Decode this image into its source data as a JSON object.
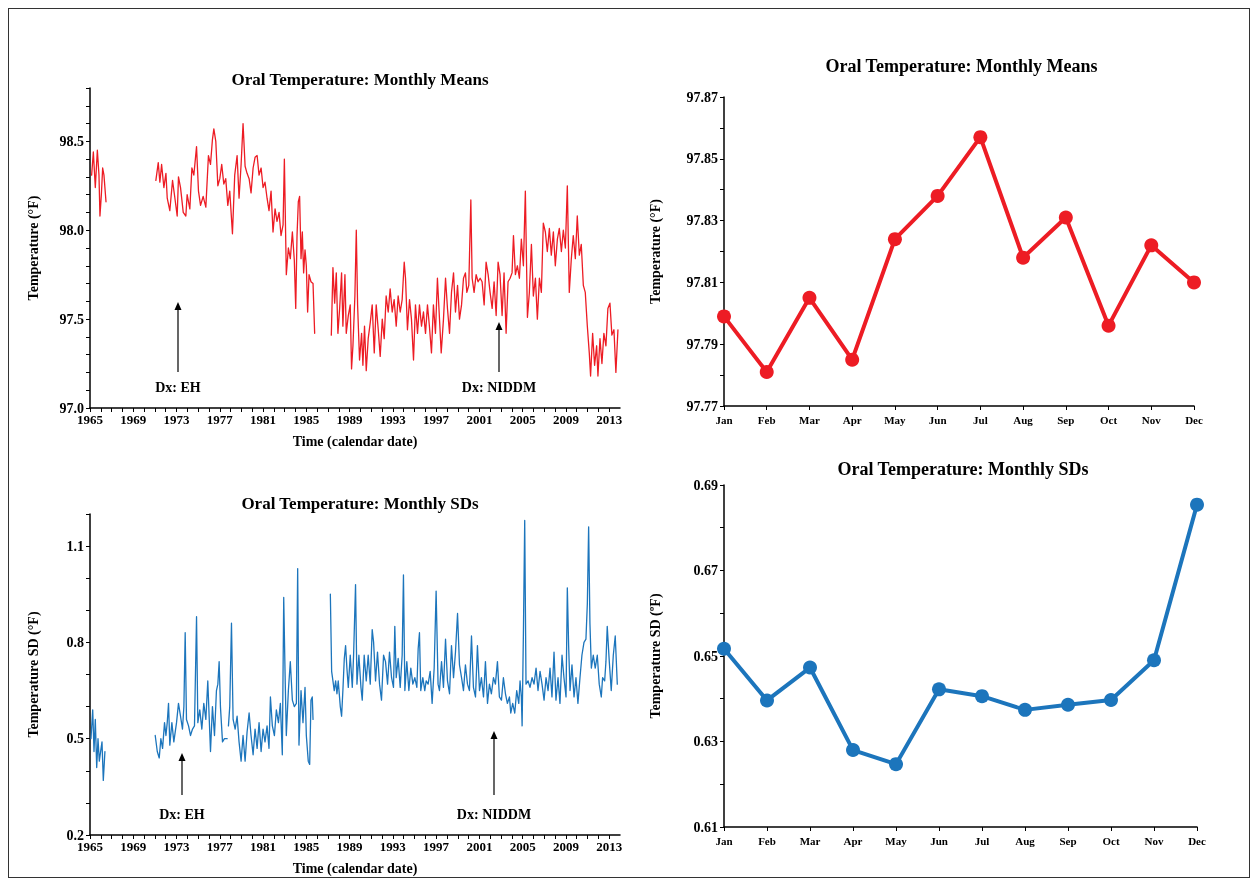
{
  "chart_data": [
    {
      "type": "line",
      "title": "Oral Temperature: Monthly Means",
      "xlabel": "Time (calendar date)",
      "ylabel": "Temperature (°F)",
      "marker": "none",
      "line_style": "solid",
      "xlim": [
        1965,
        2014
      ],
      "xticks": [
        1965,
        {
          "value": 1966,
          "label": null
        },
        {
          "value": 1967,
          "label": null
        },
        {
          "value": 1968,
          "label": null
        },
        1969,
        {
          "value": 1970,
          "label": null
        },
        {
          "value": 1971,
          "label": null
        },
        {
          "value": 1972,
          "label": null
        },
        1973,
        {
          "value": 1974,
          "label": null
        },
        {
          "value": 1975,
          "label": null
        },
        {
          "value": 1976,
          "label": null
        },
        1977,
        {
          "value": 1978,
          "label": null
        },
        {
          "value": 1979,
          "label": null
        },
        {
          "value": 1980,
          "label": null
        },
        1981,
        {
          "value": 1982,
          "label": null
        },
        {
          "value": 1983,
          "label": null
        },
        {
          "value": 1984,
          "label": null
        },
        1985,
        {
          "value": 1986,
          "label": null
        },
        {
          "value": 1987,
          "label": null
        },
        {
          "value": 1988,
          "label": null
        },
        1989,
        {
          "value": 1990,
          "label": null
        },
        {
          "value": 1991,
          "label": null
        },
        {
          "value": 1992,
          "label": null
        },
        1993,
        {
          "value": 1994,
          "label": null
        },
        {
          "value": 1995,
          "label": null
        },
        {
          "value": 1996,
          "label": null
        },
        1997,
        {
          "value": 1998,
          "label": null
        },
        {
          "value": 1999,
          "label": null
        },
        {
          "value": 2000,
          "label": null
        },
        2001,
        {
          "value": 2002,
          "label": null
        },
        {
          "value": 2003,
          "label": null
        },
        {
          "value": 2004,
          "label": null
        },
        2005,
        {
          "value": 2006,
          "label": null
        },
        {
          "value": 2007,
          "label": null
        },
        {
          "value": 2008,
          "label": null
        },
        2009,
        {
          "value": 2010,
          "label": null
        },
        {
          "value": 2011,
          "label": null
        },
        {
          "value": 2012,
          "label": null
        },
        2013
      ],
      "ylim": [
        97,
        98.8
      ],
      "yticks": [
        {
          "value": 97,
          "label": "97.0"
        },
        {
          "value": 97.1,
          "label": null
        },
        {
          "value": 97.2,
          "label": null
        },
        {
          "value": 97.3,
          "label": null
        },
        {
          "value": 97.4,
          "label": null
        },
        97.5,
        {
          "value": 97.6,
          "label": null
        },
        {
          "value": 97.7,
          "label": null
        },
        {
          "value": 97.8,
          "label": null
        },
        {
          "value": 97.9,
          "label": null
        },
        {
          "value": 98,
          "label": "98.0"
        },
        {
          "value": 98.1,
          "label": null
        },
        {
          "value": 98.2,
          "label": null
        },
        {
          "value": 98.3,
          "label": null
        },
        {
          "value": 98.4,
          "label": null
        },
        98.5,
        {
          "value": 98.6,
          "label": null
        },
        {
          "value": 98.7,
          "label": null
        },
        {
          "value": 98.8,
          "label": null
        }
      ],
      "annotations": [
        "Dx: EH",
        "Dx: NIDDM"
      ],
      "x": [
        1965.15,
        1965.31,
        1965.49,
        1965.68,
        1965.83,
        1965.92,
        1966.05,
        1966.17,
        1966.29,
        1966.48,
        1968.5,
        1971.09,
        1971.31,
        1971.46,
        1971.62,
        1971.83,
        1972.02,
        1972.14,
        1972.38,
        1972.63,
        1972.85,
        1973.06,
        1973.18,
        1973.37,
        1973.62,
        1973.86,
        1973.98,
        1974.23,
        1974.42,
        1974.6,
        1974.85,
        1975.03,
        1975.22,
        1975.46,
        1975.71,
        1975.95,
        1976.14,
        1976.32,
        1976.45,
        1976.63,
        1976.82,
        1977.0,
        1977.18,
        1977.37,
        1977.55,
        1977.74,
        1977.92,
        1978.17,
        1978.38,
        1978.6,
        1978.78,
        1978.97,
        1979.15,
        1979.34,
        1979.52,
        1979.71,
        1979.89,
        1980.08,
        1980.26,
        1980.45,
        1980.63,
        1980.82,
        1981.0,
        1981.18,
        1981.37,
        1981.55,
        1981.74,
        1981.92,
        1982.11,
        1982.29,
        1982.48,
        1982.66,
        1982.85,
        1982.97,
        1983.15,
        1983.34,
        1983.52,
        1983.71,
        1983.89,
        1984.02,
        1984.14,
        1984.26,
        1984.38,
        1984.51,
        1984.63,
        1984.75,
        1984.88,
        1985.0,
        1985.12,
        1985.25,
        1985.43,
        1985.62,
        1985.77,
        1986.5,
        1987.31,
        1987.46,
        1987.62,
        1987.77,
        1987.92,
        1988.08,
        1988.26,
        1988.38,
        1988.57,
        1988.69,
        1988.88,
        1989.06,
        1989.18,
        1989.31,
        1989.49,
        1989.62,
        1989.74,
        1989.92,
        1990.11,
        1990.23,
        1990.38,
        1990.54,
        1990.72,
        1990.91,
        1991.09,
        1991.28,
        1991.46,
        1991.65,
        1991.83,
        1992.02,
        1992.2,
        1992.38,
        1992.57,
        1992.75,
        1992.94,
        1993.12,
        1993.31,
        1993.49,
        1993.68,
        1993.86,
        1994.05,
        1994.17,
        1994.35,
        1994.54,
        1994.72,
        1994.91,
        1995.09,
        1995.28,
        1995.46,
        1995.65,
        1995.83,
        1996.02,
        1996.2,
        1996.38,
        1996.57,
        1996.75,
        1996.94,
        1997.12,
        1997.47,
        1997.68,
        1997.87,
        1998.05,
        1998.24,
        1998.42,
        1998.61,
        1998.79,
        1998.98,
        1999.16,
        1999.35,
        1999.53,
        1999.71,
        1999.84,
        2000.02,
        2000.21,
        2000.33,
        2000.51,
        2000.7,
        2000.88,
        2001.07,
        2001.25,
        2001.44,
        2001.62,
        2001.81,
        2001.99,
        2002.18,
        2002.36,
        2002.55,
        2002.73,
        2002.91,
        2003.1,
        2003.28,
        2003.47,
        2003.65,
        2003.84,
        2004.02,
        2004.15,
        2004.33,
        2004.51,
        2004.7,
        2004.88,
        2005.07,
        2005.25,
        2005.44,
        2005.62,
        2005.81,
        2005.99,
        2006.18,
        2006.36,
        2006.55,
        2006.73,
        2006.91,
        2007.1,
        2007.28,
        2007.47,
        2007.65,
        2007.84,
        2008.02,
        2008.21,
        2008.39,
        2008.58,
        2008.76,
        2008.95,
        2009.13,
        2009.31,
        2009.5,
        2009.68,
        2009.87,
        2010.05,
        2010.24,
        2010.42,
        2010.61,
        2010.79,
        2010.98,
        2011.16,
        2011.28,
        2011.47,
        2011.65,
        2011.84,
        2011.96,
        2012.15,
        2012.33,
        2012.51,
        2012.7,
        2012.88,
        2013.07,
        2013.25,
        2013.44,
        2013.62,
        2013.81
      ],
      "series": [
        {
          "color": "#ed1c24",
          "values": [
            98.31,
            98.44,
            98.24,
            98.45,
            98.31,
            98.08,
            98.2,
            98.35,
            98.31,
            98.16,
            null,
            98.28,
            98.38,
            98.27,
            98.37,
            98.24,
            98.32,
            98.18,
            98.11,
            98.28,
            98.18,
            98.08,
            98.3,
            98.24,
            98.1,
            98.08,
            98.2,
            98.12,
            98.35,
            98.31,
            98.47,
            98.22,
            98.14,
            98.19,
            98.13,
            98.42,
            98.37,
            98.51,
            98.57,
            98.5,
            98.25,
            98.29,
            98.37,
            98.26,
            98.29,
            98.14,
            98.22,
            97.98,
            98.31,
            98.42,
            98.18,
            98.37,
            98.6,
            98.36,
            98.32,
            98.29,
            98.21,
            98.35,
            98.41,
            98.42,
            98.31,
            98.35,
            98.24,
            98.27,
            98.18,
            98.11,
            98.22,
            97.99,
            98.12,
            98.05,
            98.1,
            97.97,
            98.03,
            98.4,
            97.75,
            97.9,
            97.84,
            97.99,
            97.83,
            97.56,
            97.97,
            98.16,
            98.19,
            97.84,
            97.99,
            97.76,
            97.89,
            97.8,
            97.54,
            97.75,
            97.71,
            97.7,
            97.42,
            null,
            97.41,
            97.79,
            97.59,
            97.76,
            97.42,
            97.56,
            97.76,
            97.46,
            97.75,
            97.42,
            97.52,
            97.58,
            97.22,
            97.35,
            97.63,
            98.0,
            97.58,
            97.27,
            97.42,
            97.24,
            97.46,
            97.21,
            97.39,
            97.48,
            97.58,
            97.31,
            97.58,
            97.44,
            97.29,
            97.5,
            97.39,
            97.63,
            97.54,
            97.67,
            97.54,
            97.61,
            97.46,
            97.63,
            97.54,
            97.61,
            97.82,
            97.73,
            97.44,
            97.61,
            97.5,
            97.27,
            97.58,
            97.42,
            97.58,
            97.46,
            97.54,
            97.42,
            97.58,
            97.46,
            97.31,
            97.58,
            97.42,
            97.73,
            97.31,
            97.5,
            97.73,
            97.56,
            97.42,
            97.65,
            97.76,
            97.54,
            97.69,
            97.5,
            97.58,
            97.73,
            97.76,
            97.65,
            97.69,
            98.17,
            97.73,
            97.65,
            97.75,
            97.71,
            97.73,
            97.71,
            97.58,
            97.82,
            97.75,
            97.65,
            97.56,
            97.71,
            97.52,
            97.82,
            97.75,
            97.52,
            97.76,
            97.42,
            97.71,
            97.73,
            97.76,
            97.97,
            97.75,
            97.8,
            97.73,
            97.95,
            97.8,
            98.22,
            97.51,
            97.65,
            97.92,
            97.63,
            97.73,
            97.5,
            97.73,
            97.65,
            98.04,
            97.99,
            97.88,
            98.01,
            97.86,
            97.99,
            97.8,
            97.95,
            98.01,
            97.88,
            98.0,
            97.9,
            98.25,
            97.65,
            97.84,
            97.97,
            97.84,
            98.08,
            97.86,
            97.92,
            97.69,
            97.65,
            97.46,
            97.31,
            97.18,
            97.42,
            97.24,
            97.35,
            97.18,
            97.39,
            97.25,
            97.42,
            97.35,
            97.56,
            97.59,
            97.41,
            97.44,
            97.2,
            97.44
          ]
        }
      ]
    },
    {
      "type": "line",
      "title": "Oral Temperature: Monthly Means",
      "ylabel": "Temperature (°F)",
      "marker": "circle",
      "line_style": "solid",
      "categories": [
        "Jan",
        "Feb",
        "Mar",
        "Apr",
        "May",
        "Jun",
        "Jul",
        "Aug",
        "Sep",
        "Oct",
        "Nov",
        "Dec"
      ],
      "ylim": [
        97.77,
        97.87
      ],
      "yticks": [
        97.77,
        {
          "value": 97.78,
          "label": null
        },
        97.79,
        {
          "value": 97.8,
          "label": null
        },
        97.81,
        {
          "value": 97.82,
          "label": null
        },
        97.83,
        {
          "value": 97.84,
          "label": null
        },
        97.85,
        {
          "value": 97.86,
          "label": null
        },
        97.87
      ],
      "series": [
        {
          "color": "#ed1c24",
          "values": [
            97.799,
            97.781,
            97.805,
            97.785,
            97.824,
            97.838,
            97.857,
            97.818,
            97.831,
            97.796,
            97.822,
            97.81
          ]
        }
      ]
    },
    {
      "type": "line",
      "title": "Oral Temperature: Monthly SDs",
      "xlabel": "Time (calendar date)",
      "ylabel": "Temperature SD (°F)",
      "marker": "none",
      "line_style": "solid",
      "xlim": [
        1965,
        2014
      ],
      "xticks": [
        1965,
        {
          "value": 1966,
          "label": null
        },
        {
          "value": 1967,
          "label": null
        },
        {
          "value": 1968,
          "label": null
        },
        1969,
        {
          "value": 1970,
          "label": null
        },
        {
          "value": 1971,
          "label": null
        },
        {
          "value": 1972,
          "label": null
        },
        1973,
        {
          "value": 1974,
          "label": null
        },
        {
          "value": 1975,
          "label": null
        },
        {
          "value": 1976,
          "label": null
        },
        1977,
        {
          "value": 1978,
          "label": null
        },
        {
          "value": 1979,
          "label": null
        },
        {
          "value": 1980,
          "label": null
        },
        1981,
        {
          "value": 1982,
          "label": null
        },
        {
          "value": 1983,
          "label": null
        },
        {
          "value": 1984,
          "label": null
        },
        1985,
        {
          "value": 1986,
          "label": null
        },
        {
          "value": 1987,
          "label": null
        },
        {
          "value": 1988,
          "label": null
        },
        1989,
        {
          "value": 1990,
          "label": null
        },
        {
          "value": 1991,
          "label": null
        },
        {
          "value": 1992,
          "label": null
        },
        1993,
        {
          "value": 1994,
          "label": null
        },
        {
          "value": 1995,
          "label": null
        },
        {
          "value": 1996,
          "label": null
        },
        1997,
        {
          "value": 1998,
          "label": null
        },
        {
          "value": 1999,
          "label": null
        },
        {
          "value": 2000,
          "label": null
        },
        2001,
        {
          "value": 2002,
          "label": null
        },
        {
          "value": 2003,
          "label": null
        },
        {
          "value": 2004,
          "label": null
        },
        2005,
        {
          "value": 2006,
          "label": null
        },
        {
          "value": 2007,
          "label": null
        },
        {
          "value": 2008,
          "label": null
        },
        2009,
        {
          "value": 2010,
          "label": null
        },
        {
          "value": 2011,
          "label": null
        },
        {
          "value": 2012,
          "label": null
        },
        2013
      ],
      "ylim": [
        0.2,
        1.2
      ],
      "yticks": [
        0.2,
        {
          "value": 0.3,
          "label": null
        },
        {
          "value": 0.4,
          "label": null
        },
        0.5,
        {
          "value": 0.6,
          "label": null
        },
        {
          "value": 0.7,
          "label": null
        },
        0.8,
        {
          "value": 0.9,
          "label": null
        },
        {
          "value": 1,
          "label": null
        },
        1.1,
        {
          "value": 1.2,
          "label": null
        }
      ],
      "annotations": [
        "Dx: EH",
        "Dx: NIDDM"
      ],
      "x": [
        1965.09,
        1965.25,
        1965.37,
        1965.49,
        1965.62,
        1965.74,
        1965.86,
        1965.98,
        1966.11,
        1966.23,
        1966.38,
        1968.5,
        1971.03,
        1971.22,
        1971.4,
        1971.55,
        1971.71,
        1971.89,
        1972.02,
        1972.14,
        1972.26,
        1972.38,
        1972.57,
        1972.75,
        1973.0,
        1973.18,
        1973.37,
        1973.55,
        1973.68,
        1973.8,
        1973.92,
        1974.11,
        1974.29,
        1974.48,
        1974.66,
        1974.85,
        1974.97,
        1975.15,
        1975.34,
        1975.52,
        1975.71,
        1975.89,
        1976.14,
        1976.32,
        1976.51,
        1976.69,
        1976.82,
        1976.94,
        1977.06,
        1977.25,
        1977.43,
        1977.68,
        1977.74,
        1977.8,
        1977.92,
        1978.08,
        1978.23,
        1978.42,
        1978.6,
        1978.78,
        1978.97,
        1979.15,
        1979.34,
        1979.52,
        1979.71,
        1979.89,
        1980.08,
        1980.26,
        1980.45,
        1980.63,
        1980.82,
        1981.0,
        1981.18,
        1981.37,
        1981.55,
        1981.68,
        1981.86,
        1982.05,
        1982.23,
        1982.42,
        1982.6,
        1982.78,
        1982.91,
        1983.03,
        1983.15,
        1983.34,
        1983.52,
        1983.71,
        1983.89,
        1984.08,
        1984.2,
        1984.32,
        1984.51,
        1984.69,
        1984.88,
        1985.0,
        1985.18,
        1985.31,
        1985.43,
        1985.55,
        1985.62,
        1986.5,
        1987.22,
        1987.34,
        1987.46,
        1987.58,
        1987.71,
        1987.83,
        1987.95,
        1988.14,
        1988.26,
        1988.38,
        1988.51,
        1988.63,
        1988.75,
        1988.88,
        1989.06,
        1989.25,
        1989.37,
        1989.55,
        1989.68,
        1989.86,
        1990.05,
        1990.17,
        1990.35,
        1990.54,
        1990.72,
        1990.91,
        1991.09,
        1991.22,
        1991.4,
        1991.58,
        1991.77,
        1991.95,
        1992.14,
        1992.32,
        1992.51,
        1992.69,
        1992.88,
        1993.06,
        1993.18,
        1993.31,
        1993.49,
        1993.68,
        1993.86,
        1993.98,
        1994.11,
        1994.29,
        1994.48,
        1994.66,
        1994.85,
        1995.03,
        1995.22,
        1995.34,
        1995.46,
        1995.58,
        1995.77,
        1995.95,
        1996.08,
        1996.26,
        1996.45,
        1996.63,
        1996.82,
        1997.0,
        1997.18,
        1997.31,
        1997.5,
        1997.68,
        1997.87,
        1998.05,
        1998.24,
        1998.42,
        1998.61,
        1998.79,
        1998.98,
        1999.16,
        1999.35,
        1999.53,
        1999.71,
        1999.9,
        2000.08,
        2000.27,
        2000.45,
        2000.64,
        2000.82,
        2001.01,
        2001.19,
        2001.38,
        2001.56,
        2001.75,
        2001.93,
        2002.11,
        2002.3,
        2002.48,
        2002.67,
        2002.85,
        2003.04,
        2003.22,
        2003.41,
        2003.59,
        2003.78,
        2003.9,
        2004.08,
        2004.27,
        2004.45,
        2004.64,
        2004.76,
        2004.88,
        2004.95,
        2005.07,
        2005.19,
        2005.31,
        2005.5,
        2005.68,
        2005.87,
        2006.05,
        2006.24,
        2006.42,
        2006.61,
        2006.79,
        2006.98,
        2007.16,
        2007.35,
        2007.53,
        2007.71,
        2007.9,
        2008.08,
        2008.27,
        2008.45,
        2008.64,
        2008.82,
        2009.01,
        2009.13,
        2009.25,
        2009.38,
        2009.56,
        2009.75,
        2009.93,
        2010.11,
        2010.3,
        2010.48,
        2010.67,
        2010.85,
        2010.98,
        2011.1,
        2011.22,
        2011.35,
        2011.53,
        2011.71,
        2011.9,
        2012.08,
        2012.27,
        2012.39,
        2012.58,
        2012.7,
        2012.82,
        2013.01,
        2013.19,
        2013.38,
        2013.56,
        2013.75
      ],
      "series": [
        {
          "color": "#1c75bc",
          "values": [
            0.5,
            0.59,
            0.46,
            0.56,
            0.41,
            0.5,
            0.43,
            0.46,
            0.49,
            0.37,
            0.46,
            null,
            0.51,
            0.46,
            0.44,
            0.5,
            0.47,
            0.55,
            0.51,
            0.55,
            0.61,
            0.48,
            0.55,
            0.49,
            0.55,
            0.61,
            0.57,
            0.53,
            0.6,
            0.83,
            0.56,
            0.54,
            0.51,
            0.53,
            0.54,
            0.88,
            0.55,
            0.59,
            0.53,
            0.61,
            0.56,
            0.68,
            0.46,
            0.6,
            0.51,
            0.65,
            0.67,
            0.74,
            0.6,
            0.49,
            0.5,
            0.5,
            null,
            0.54,
            0.6,
            0.86,
            0.56,
            0.53,
            0.57,
            0.49,
            0.43,
            0.51,
            0.43,
            0.52,
            0.58,
            0.51,
            0.45,
            0.53,
            0.47,
            0.55,
            0.46,
            0.53,
            0.49,
            0.54,
            0.47,
            0.63,
            0.54,
            0.51,
            0.59,
            0.55,
            0.61,
            0.45,
            0.94,
            0.71,
            0.51,
            0.65,
            0.74,
            0.62,
            0.6,
            0.61,
            1.03,
            0.48,
            0.65,
            0.55,
            0.66,
            0.51,
            0.43,
            0.42,
            0.62,
            0.63,
            0.56,
            null,
            0.95,
            0.71,
            0.68,
            0.65,
            0.68,
            0.64,
            0.68,
            0.6,
            0.57,
            0.65,
            0.75,
            0.79,
            0.72,
            0.66,
            0.76,
            0.66,
            0.76,
            0.98,
            0.67,
            0.76,
            0.66,
            0.62,
            0.76,
            0.68,
            0.76,
            0.67,
            0.84,
            0.8,
            0.68,
            0.77,
            0.67,
            0.62,
            0.76,
            0.74,
            0.67,
            0.77,
            0.69,
            0.66,
            0.85,
            0.69,
            0.75,
            0.66,
            0.76,
            1.01,
            0.65,
            0.74,
            0.65,
            0.72,
            0.67,
            0.69,
            0.66,
            0.78,
            0.83,
            0.65,
            0.69,
            0.65,
            0.68,
            0.67,
            0.71,
            0.61,
            0.72,
            0.96,
            0.67,
            0.65,
            0.74,
            0.66,
            0.81,
            0.68,
            0.64,
            0.79,
            0.69,
            0.77,
            0.89,
            0.73,
            0.69,
            0.65,
            0.73,
            0.67,
            0.65,
            0.82,
            0.66,
            0.63,
            0.79,
            0.65,
            0.69,
            0.63,
            0.74,
            0.61,
            0.67,
            0.64,
            0.69,
            0.67,
            0.74,
            0.63,
            0.62,
            0.69,
            0.64,
            0.61,
            0.63,
            0.58,
            0.61,
            0.58,
            0.65,
            0.61,
            0.68,
            0.63,
            0.54,
            0.83,
            1.18,
            0.67,
            0.68,
            0.66,
            0.69,
            0.67,
            0.72,
            0.65,
            0.71,
            0.67,
            0.62,
            0.69,
            0.65,
            0.72,
            0.63,
            0.77,
            0.62,
            0.69,
            0.61,
            0.76,
            0.69,
            0.63,
            0.97,
            0.79,
            0.65,
            0.73,
            0.63,
            0.69,
            0.61,
            0.69,
            0.76,
            0.8,
            0.81,
            0.92,
            1.16,
            0.86,
            0.72,
            0.76,
            0.72,
            0.76,
            0.67,
            0.63,
            0.69,
            0.68,
            0.74,
            0.85,
            0.74,
            0.65,
            0.76,
            0.82,
            0.67
          ]
        }
      ]
    },
    {
      "type": "line",
      "title": "Oral Temperature: Monthly SDs",
      "ylabel": "Temperature SD (ºF)",
      "marker": "circle",
      "line_style": "solid",
      "categories": [
        "Jan",
        "Feb",
        "Mar",
        "Apr",
        "May",
        "Jun",
        "Jul",
        "Aug",
        "Sep",
        "Oct",
        "Nov",
        "Dec"
      ],
      "ylim": [
        0.61,
        0.69
      ],
      "yticks": [
        0.61,
        {
          "value": 0.62,
          "label": null
        },
        0.63,
        {
          "value": 0.64,
          "label": null
        },
        0.65,
        {
          "value": 0.66,
          "label": null
        },
        0.67,
        {
          "value": 0.68,
          "label": null
        },
        0.69
      ],
      "series": [
        {
          "color": "#1c75bc",
          "values": [
            0.6517,
            0.6396,
            0.6473,
            0.628,
            0.6247,
            0.6422,
            0.6406,
            0.6374,
            0.6386,
            0.6397,
            0.649,
            0.6854
          ]
        }
      ]
    }
  ]
}
